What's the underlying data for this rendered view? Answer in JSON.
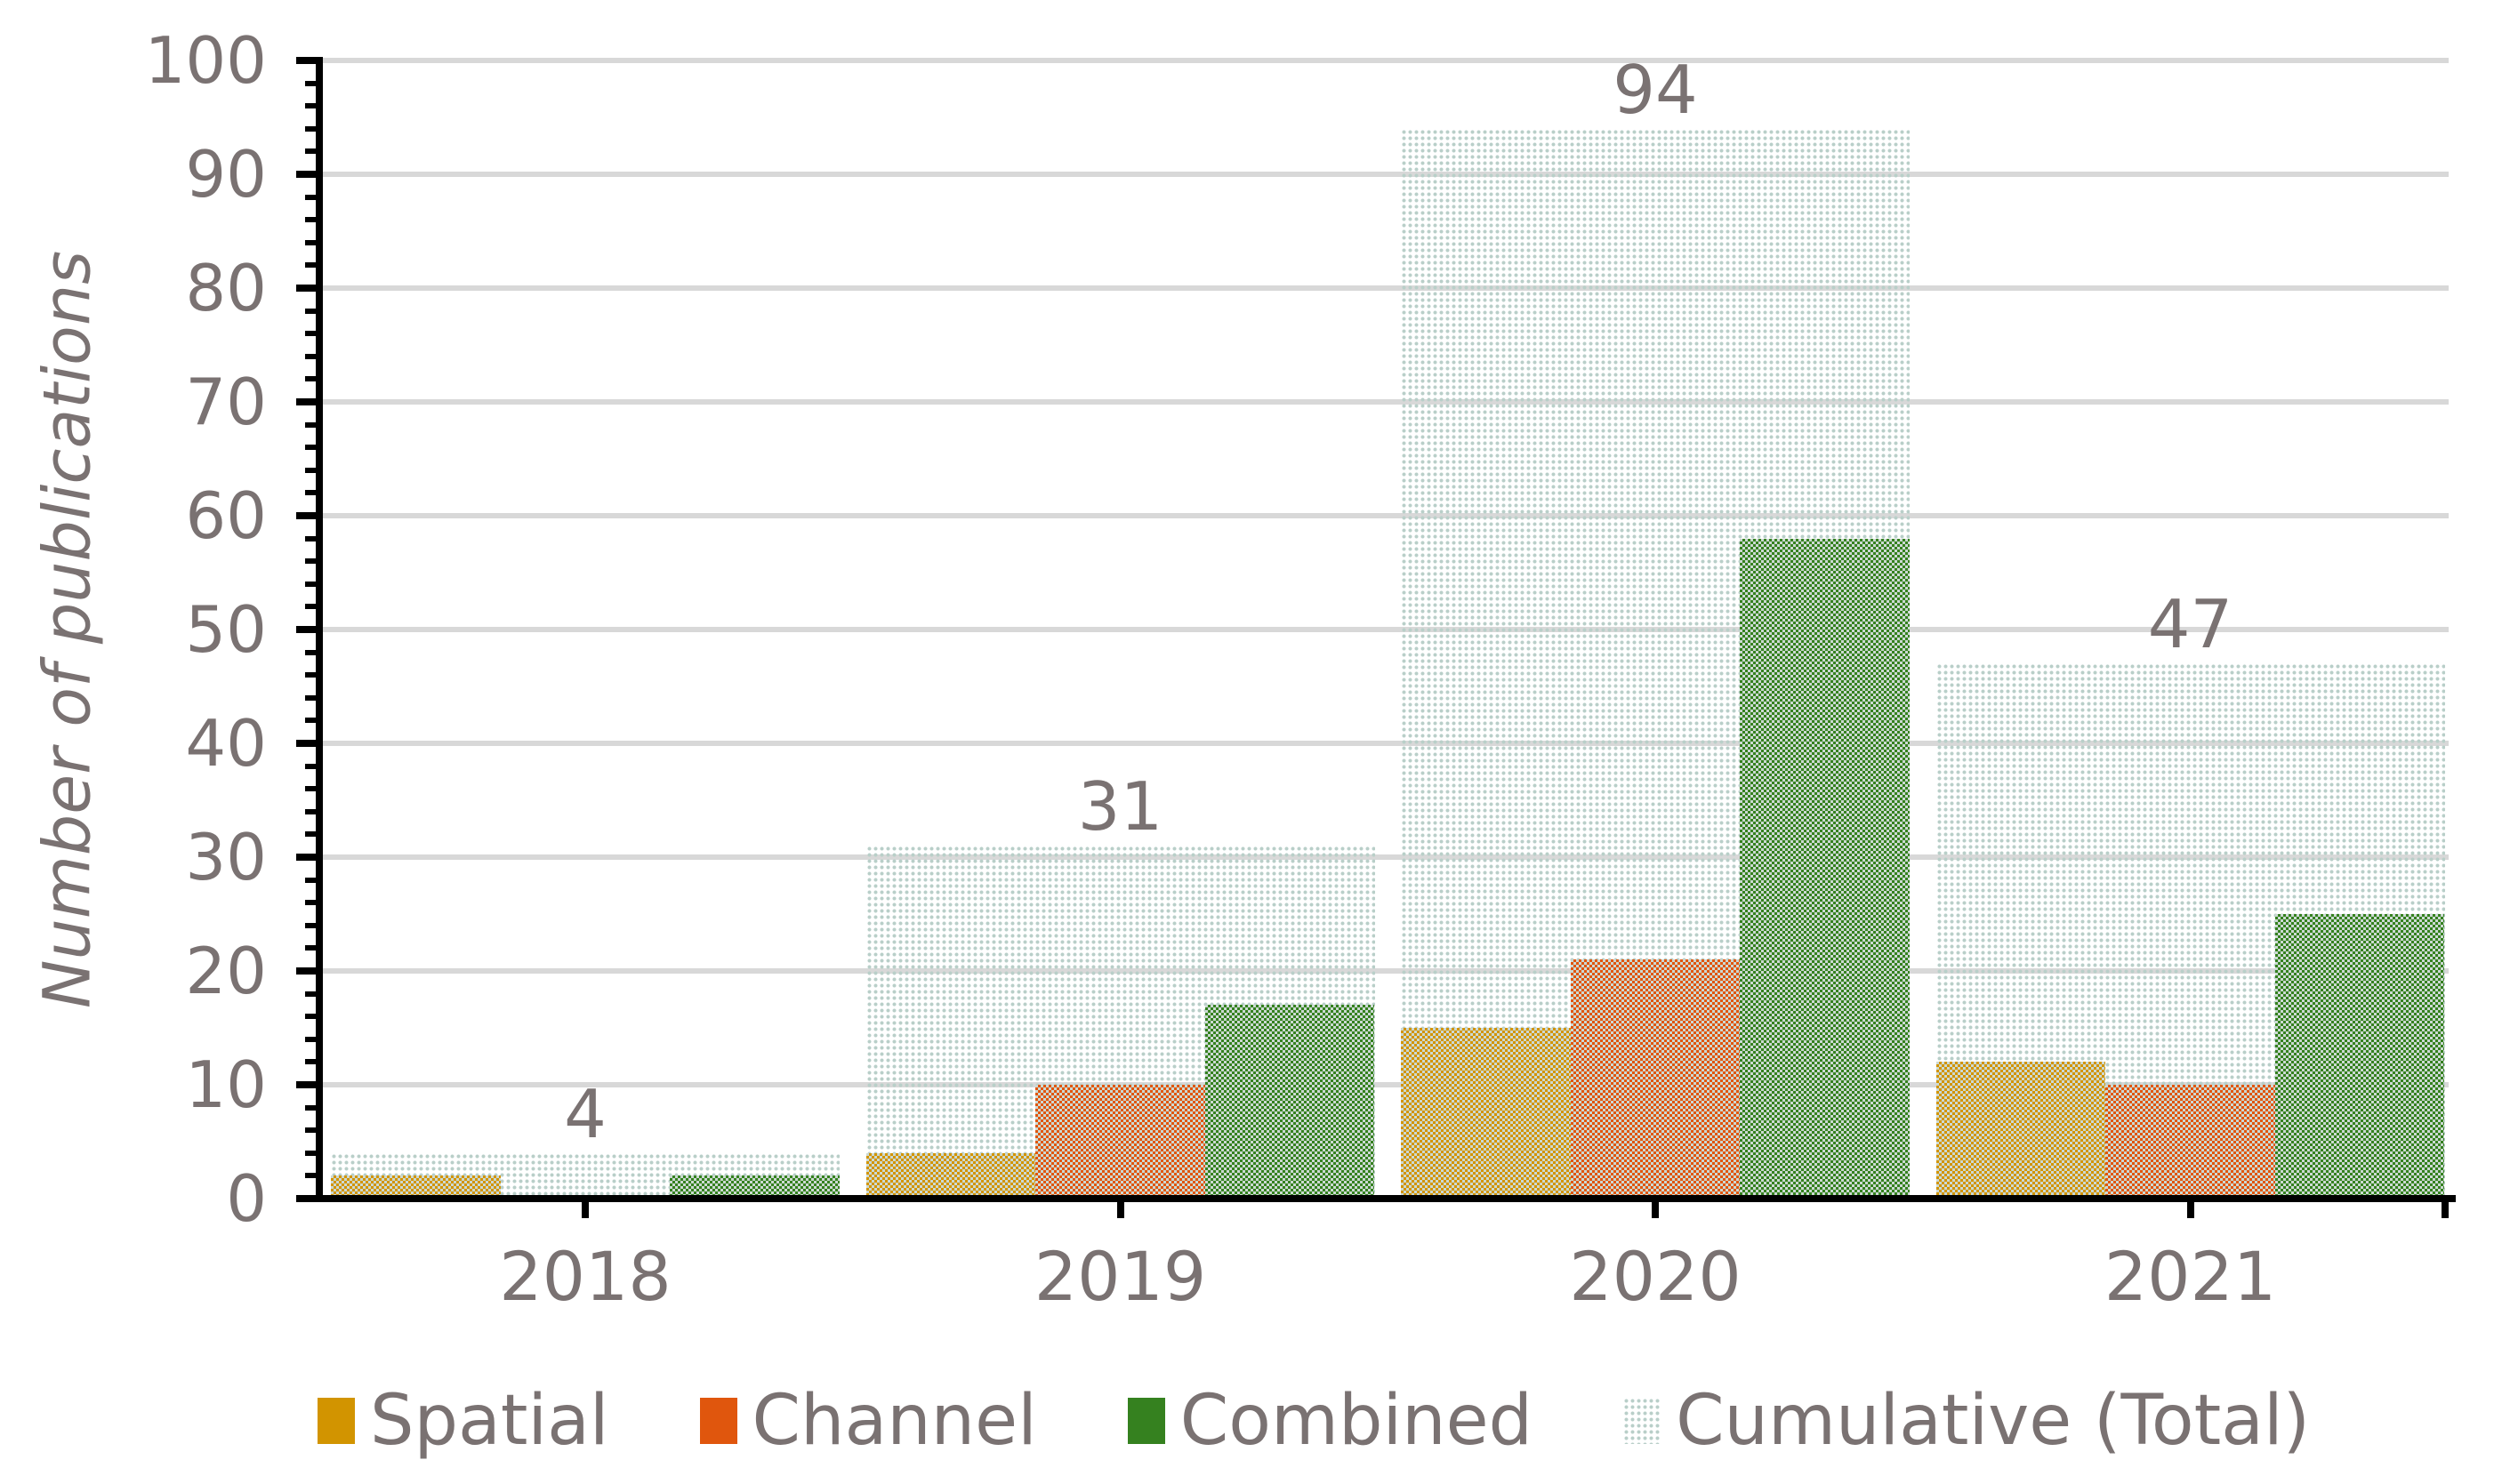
{
  "figure": {
    "background": "#ffffff",
    "text_color": "#7a7272",
    "gridline_color": "#d8d8d8",
    "axis_color": "#000000",
    "pattern_light": "#ccd9d3"
  },
  "chart_data": {
    "type": "bar",
    "title": "",
    "xlabel": "",
    "ylabel": "Number of publications",
    "categories": [
      "2018",
      "2019",
      "2020",
      "2021"
    ],
    "series": [
      {
        "name": "Spatial",
        "color": "#d29400",
        "style": "checker",
        "values": [
          2,
          4,
          15,
          12
        ]
      },
      {
        "name": "Channel",
        "color": "#e0560d",
        "style": "checker",
        "values": [
          0,
          10,
          21,
          10
        ]
      },
      {
        "name": "Combined",
        "color": "#35811f",
        "style": "checker",
        "values": [
          2,
          17,
          58,
          25
        ]
      },
      {
        "name": "Cumulative (Total)",
        "color": "#b9cfc9",
        "style": "dots-background",
        "values": [
          4,
          31,
          94,
          47
        ]
      }
    ],
    "bar_labels": [
      "4",
      "31",
      "94",
      "47"
    ],
    "ylim": [
      0,
      100
    ],
    "yticks": [
      0,
      10,
      20,
      30,
      40,
      50,
      60,
      70,
      80,
      90,
      100
    ],
    "minor_tick_step": 2,
    "grid": "horizontal",
    "legend_position": "bottom",
    "legend_entries": [
      "Spatial",
      "Channel",
      "Combined",
      "Cumulative (Total)"
    ]
  }
}
